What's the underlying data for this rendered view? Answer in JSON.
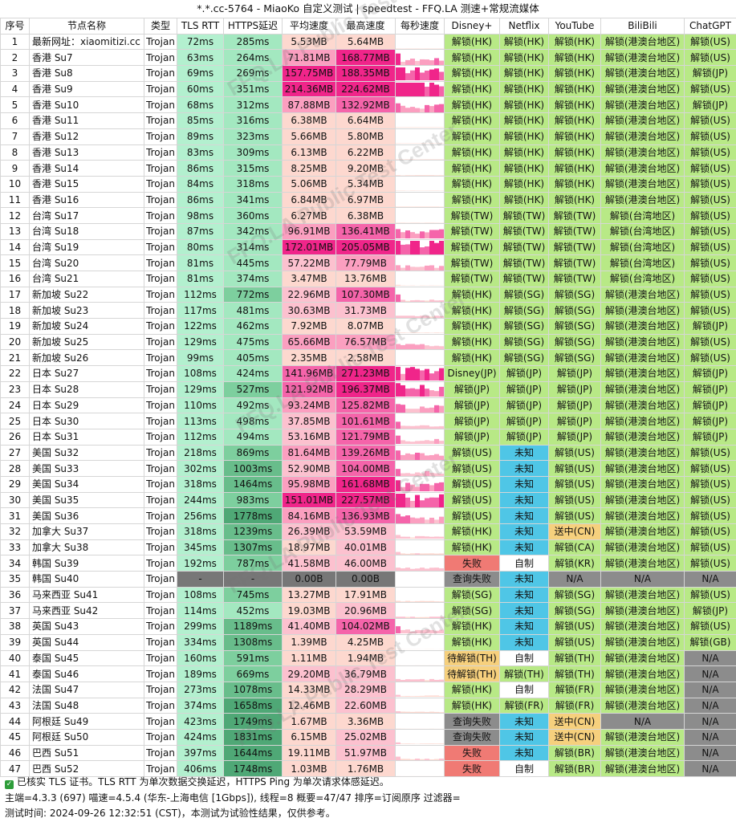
{
  "title": "*.*.cc-5764 - MiaoKo 自定义测试 | speedtest - FFQ.LA 测速+常规流媒体",
  "headers": [
    "序号",
    "节点名称",
    "类型",
    "TLS RTT",
    "HTTPS延迟",
    "平均速度",
    "最高速度",
    "每秒速度",
    "Disney+",
    "Netflix",
    "YouTube",
    "BiliBili",
    "ChatGPT"
  ],
  "rows": [
    [
      "1",
      "最新网址：xiaomitizi.cc",
      "Trojan",
      "72ms",
      "285ms",
      "5.53MB",
      "5.64MB",
      "",
      "解锁(HK)",
      "解锁(HK)",
      "解锁(HK)",
      "解锁(港澳台地区)",
      "解锁(US)"
    ],
    [
      "2",
      "香港 Su7",
      "Trojan",
      "63ms",
      "264ms",
      "71.81MB",
      "168.77MB",
      "",
      "解锁(HK)",
      "解锁(HK)",
      "解锁(HK)",
      "解锁(港澳台地区)",
      "解锁(US)"
    ],
    [
      "3",
      "香港 Su8",
      "Trojan",
      "69ms",
      "269ms",
      "157.75MB",
      "188.35MB",
      "",
      "解锁(HK)",
      "解锁(HK)",
      "解锁(HK)",
      "解锁(港澳台地区)",
      "解锁(JP)"
    ],
    [
      "4",
      "香港 Su9",
      "Trojan",
      "60ms",
      "351ms",
      "214.36MB",
      "224.62MB",
      "",
      "解锁(HK)",
      "解锁(HK)",
      "解锁(HK)",
      "解锁(港澳台地区)",
      "解锁(US)"
    ],
    [
      "5",
      "香港 Su10",
      "Trojan",
      "68ms",
      "312ms",
      "87.88MB",
      "132.92MB",
      "",
      "解锁(HK)",
      "解锁(HK)",
      "解锁(HK)",
      "解锁(港澳台地区)",
      "解锁(JP)"
    ],
    [
      "6",
      "香港 Su11",
      "Trojan",
      "85ms",
      "316ms",
      "6.38MB",
      "6.64MB",
      "",
      "解锁(HK)",
      "解锁(HK)",
      "解锁(HK)",
      "解锁(港澳台地区)",
      "解锁(US)"
    ],
    [
      "7",
      "香港 Su12",
      "Trojan",
      "89ms",
      "323ms",
      "5.66MB",
      "5.80MB",
      "",
      "解锁(HK)",
      "解锁(HK)",
      "解锁(HK)",
      "解锁(港澳台地区)",
      "解锁(US)"
    ],
    [
      "8",
      "香港 Su13",
      "Trojan",
      "83ms",
      "309ms",
      "6.13MB",
      "6.22MB",
      "",
      "解锁(HK)",
      "解锁(HK)",
      "解锁(HK)",
      "解锁(港澳台地区)",
      "解锁(US)"
    ],
    [
      "9",
      "香港 Su14",
      "Trojan",
      "86ms",
      "315ms",
      "8.25MB",
      "9.20MB",
      "",
      "解锁(HK)",
      "解锁(HK)",
      "解锁(HK)",
      "解锁(港澳台地区)",
      "解锁(US)"
    ],
    [
      "10",
      "香港 Su15",
      "Trojan",
      "84ms",
      "318ms",
      "5.06MB",
      "5.34MB",
      "",
      "解锁(HK)",
      "解锁(HK)",
      "解锁(HK)",
      "解锁(港澳台地区)",
      "解锁(US)"
    ],
    [
      "11",
      "香港 Su16",
      "Trojan",
      "86ms",
      "341ms",
      "6.84MB",
      "6.97MB",
      "",
      "解锁(HK)",
      "解锁(HK)",
      "解锁(HK)",
      "解锁(港澳台地区)",
      "解锁(US)"
    ],
    [
      "12",
      "台湾 Su17",
      "Trojan",
      "98ms",
      "360ms",
      "6.27MB",
      "6.38MB",
      "",
      "解锁(TW)",
      "解锁(TW)",
      "解锁(TW)",
      "解锁(台湾地区)",
      "解锁(US)"
    ],
    [
      "13",
      "台湾 Su18",
      "Trojan",
      "87ms",
      "342ms",
      "96.91MB",
      "136.41MB",
      "",
      "解锁(TW)",
      "解锁(TW)",
      "解锁(TW)",
      "解锁(台湾地区)",
      "解锁(US)"
    ],
    [
      "14",
      "台湾 Su19",
      "Trojan",
      "80ms",
      "314ms",
      "172.01MB",
      "205.05MB",
      "",
      "解锁(TW)",
      "解锁(TW)",
      "解锁(TW)",
      "解锁(台湾地区)",
      "解锁(US)"
    ],
    [
      "15",
      "台湾 Su20",
      "Trojan",
      "81ms",
      "445ms",
      "57.22MB",
      "77.79MB",
      "",
      "解锁(TW)",
      "解锁(TW)",
      "解锁(TW)",
      "解锁(台湾地区)",
      "解锁(US)"
    ],
    [
      "16",
      "台湾 Su21",
      "Trojan",
      "81ms",
      "374ms",
      "3.47MB",
      "13.76MB",
      "",
      "解锁(TW)",
      "解锁(TW)",
      "解锁(TW)",
      "解锁(台湾地区)",
      "解锁(US)"
    ],
    [
      "17",
      "新加坡 Su22",
      "Trojan",
      "112ms",
      "772ms",
      "22.96MB",
      "107.30MB",
      "",
      "解锁(HK)",
      "解锁(SG)",
      "解锁(SG)",
      "解锁(港澳台地区)",
      "解锁(US)"
    ],
    [
      "18",
      "新加坡 Su23",
      "Trojan",
      "117ms",
      "481ms",
      "30.63MB",
      "31.73MB",
      "",
      "解锁(HK)",
      "解锁(SG)",
      "解锁(SG)",
      "解锁(港澳台地区)",
      "解锁(US)"
    ],
    [
      "19",
      "新加坡 Su24",
      "Trojan",
      "122ms",
      "462ms",
      "7.92MB",
      "8.07MB",
      "",
      "解锁(HK)",
      "解锁(SG)",
      "解锁(SG)",
      "解锁(港澳台地区)",
      "解锁(JP)"
    ],
    [
      "20",
      "新加坡 Su25",
      "Trojan",
      "129ms",
      "475ms",
      "65.66MB",
      "76.57MB",
      "",
      "解锁(HK)",
      "解锁(SG)",
      "解锁(SG)",
      "解锁(港澳台地区)",
      "解锁(US)"
    ],
    [
      "21",
      "新加坡 Su26",
      "Trojan",
      "99ms",
      "405ms",
      "2.35MB",
      "2.58MB",
      "",
      "解锁(HK)",
      "解锁(SG)",
      "解锁(SG)",
      "解锁(港澳台地区)",
      "解锁(US)"
    ],
    [
      "22",
      "日本 Su27",
      "Trojan",
      "108ms",
      "424ms",
      "141.96MB",
      "271.23MB",
      "",
      "Disney(JP)",
      "解锁(JP)",
      "解锁(JP)",
      "解锁(港澳台地区)",
      "解锁(JP)"
    ],
    [
      "23",
      "日本 Su28",
      "Trojan",
      "129ms",
      "527ms",
      "121.92MB",
      "196.37MB",
      "",
      "解锁(JP)",
      "解锁(JP)",
      "解锁(JP)",
      "解锁(港澳台地区)",
      "解锁(JP)"
    ],
    [
      "24",
      "日本 Su29",
      "Trojan",
      "110ms",
      "492ms",
      "93.24MB",
      "125.82MB",
      "",
      "解锁(JP)",
      "解锁(JP)",
      "解锁(JP)",
      "解锁(港澳台地区)",
      "解锁(JP)"
    ],
    [
      "25",
      "日本 Su30",
      "Trojan",
      "113ms",
      "498ms",
      "37.85MB",
      "101.61MB",
      "",
      "解锁(JP)",
      "解锁(JP)",
      "解锁(JP)",
      "解锁(港澳台地区)",
      "解锁(JP)"
    ],
    [
      "26",
      "日本 Su31",
      "Trojan",
      "112ms",
      "494ms",
      "53.16MB",
      "121.79MB",
      "",
      "解锁(JP)",
      "解锁(JP)",
      "解锁(JP)",
      "解锁(港澳台地区)",
      "解锁(JP)"
    ],
    [
      "27",
      "美国 Su32",
      "Trojan",
      "218ms",
      "869ms",
      "81.64MB",
      "139.26MB",
      "",
      "解锁(US)",
      "未知",
      "解锁(US)",
      "解锁(港澳台地区)",
      "解锁(US)"
    ],
    [
      "28",
      "美国 Su33",
      "Trojan",
      "302ms",
      "1003ms",
      "52.90MB",
      "104.00MB",
      "",
      "解锁(US)",
      "未知",
      "解锁(US)",
      "解锁(港澳台地区)",
      "解锁(US)"
    ],
    [
      "29",
      "美国 Su34",
      "Trojan",
      "318ms",
      "1464ms",
      "95.98MB",
      "161.68MB",
      "",
      "解锁(US)",
      "未知",
      "解锁(US)",
      "解锁(港澳台地区)",
      "解锁(US)"
    ],
    [
      "30",
      "美国 Su35",
      "Trojan",
      "244ms",
      "983ms",
      "151.01MB",
      "227.57MB",
      "",
      "解锁(US)",
      "未知",
      "解锁(US)",
      "解锁(港澳台地区)",
      "解锁(US)"
    ],
    [
      "31",
      "美国 Su36",
      "Trojan",
      "256ms",
      "1778ms",
      "84.16MB",
      "136.93MB",
      "",
      "解锁(US)",
      "未知",
      "解锁(US)",
      "解锁(港澳台地区)",
      "解锁(US)"
    ],
    [
      "32",
      "加拿大 Su37",
      "Trojan",
      "318ms",
      "1239ms",
      "26.39MB",
      "53.59MB",
      "",
      "解锁(HK)",
      "未知",
      "送中(CN)",
      "解锁(港澳台地区)",
      "解锁(US)"
    ],
    [
      "33",
      "加拿大 Su38",
      "Trojan",
      "345ms",
      "1307ms",
      "18.97MB",
      "40.01MB",
      "",
      "解锁(HK)",
      "未知",
      "解锁(CA)",
      "解锁(港澳台地区)",
      "解锁(US)"
    ],
    [
      "34",
      "韩国 Su39",
      "Trojan",
      "192ms",
      "787ms",
      "41.58MB",
      "46.00MB",
      "",
      "失败",
      "自制",
      "解锁(KR)",
      "解锁(港澳台地区)",
      "解锁(US)"
    ],
    [
      "35",
      "韩国 Su40",
      "Trojan",
      "-",
      "-",
      "0.00B",
      "0.00B",
      "",
      "查询失败",
      "未知",
      "N/A",
      "N/A",
      "N/A"
    ],
    [
      "36",
      "马来西亚 Su41",
      "Trojan",
      "108ms",
      "745ms",
      "13.27MB",
      "17.91MB",
      "",
      "解锁(SG)",
      "未知",
      "解锁(SG)",
      "解锁(港澳台地区)",
      "解锁(US)"
    ],
    [
      "37",
      "马来西亚 Su42",
      "Trojan",
      "114ms",
      "452ms",
      "19.03MB",
      "20.96MB",
      "",
      "解锁(SG)",
      "未知",
      "解锁(SG)",
      "解锁(港澳台地区)",
      "解锁(JP)"
    ],
    [
      "38",
      "英国 Su43",
      "Trojan",
      "299ms",
      "1189ms",
      "41.40MB",
      "104.02MB",
      "",
      "解锁(HK)",
      "未知",
      "解锁(US)",
      "解锁(港澳台地区)",
      "解锁(US)"
    ],
    [
      "39",
      "英国 Su44",
      "Trojan",
      "334ms",
      "1308ms",
      "1.39MB",
      "4.25MB",
      "",
      "解锁(HK)",
      "未知",
      "解锁(US)",
      "解锁(港澳台地区)",
      "解锁(GB)"
    ],
    [
      "40",
      "泰国 Su45",
      "Trojan",
      "160ms",
      "591ms",
      "1.11MB",
      "1.94MB",
      "",
      "待解锁(TH)",
      "自制",
      "解锁(TH)",
      "解锁(港澳台地区)",
      "N/A"
    ],
    [
      "41",
      "泰国 Su46",
      "Trojan",
      "189ms",
      "669ms",
      "29.20MB",
      "36.79MB",
      "",
      "待解锁(TH)",
      "解锁(TH)",
      "解锁(TH)",
      "解锁(港澳台地区)",
      "N/A"
    ],
    [
      "42",
      "法国 Su47",
      "Trojan",
      "273ms",
      "1078ms",
      "14.33MB",
      "28.29MB",
      "",
      "解锁(HK)",
      "自制",
      "解锁(FR)",
      "解锁(港澳台地区)",
      "N/A"
    ],
    [
      "43",
      "法国 Su48",
      "Trojan",
      "374ms",
      "1658ms",
      "12.46MB",
      "22.60MB",
      "",
      "解锁(HK)",
      "解锁(FR)",
      "解锁(FR)",
      "解锁(港澳台地区)",
      "N/A"
    ],
    [
      "44",
      "阿根廷 Su49",
      "Trojan",
      "423ms",
      "1749ms",
      "1.67MB",
      "3.36MB",
      "",
      "查询失败",
      "未知",
      "送中(CN)",
      "N/A",
      "N/A"
    ],
    [
      "45",
      "阿根廷 Su50",
      "Trojan",
      "424ms",
      "1831ms",
      "6.15MB",
      "25.02MB",
      "",
      "查询失败",
      "未知",
      "送中(CN)",
      "解锁(港澳台地区)",
      "N/A"
    ],
    [
      "46",
      "巴西 Su51",
      "Trojan",
      "397ms",
      "1644ms",
      "19.11MB",
      "51.97MB",
      "",
      "失败",
      "未知",
      "解锁(BR)",
      "解锁(港澳台地区)",
      "N/A"
    ],
    [
      "47",
      "巴西 Su52",
      "Trojan",
      "406ms",
      "1748ms",
      "1.03MB",
      "1.76MB",
      "",
      "失败",
      "自制",
      "解锁(BR)",
      "解锁(港澳台地区)",
      "N/A"
    ]
  ],
  "footer": {
    "line1": "已核实 TLS 证书。TLS RTT 为单次数据交换延迟，HTTPS Ping 为单次请求体感延迟。",
    "line2": "主端=4.3.3 (697) 喵速=4.5.4 (华东-上海电信 [1Gbps]), 线程=8 概要=47/47 排序=订阅原序 过滤器=",
    "line3": "测试时间:  2024-09-26 12:32:51 (CST)，本测试为试验性结果，仅供参考。"
  },
  "watermark": "FFQ.LA Public Test Center",
  "colors": {
    "rtt": "#b3f0cf",
    "https_light": "#a3e8c0",
    "https_mid": "#7dcf9e",
    "https_dark": "#4fa876",
    "speed_low": "#fdd8cf",
    "speed_mid": "#fb9fc0",
    "speed_high": "#f0258a",
    "unlock": "#b8e986",
    "unknown": "#4fc6e6",
    "fail": "#f07a74",
    "pending": "#f6d07d",
    "na": "#8c8c8c",
    "self": "#ffffff",
    "dead": "#777777"
  }
}
